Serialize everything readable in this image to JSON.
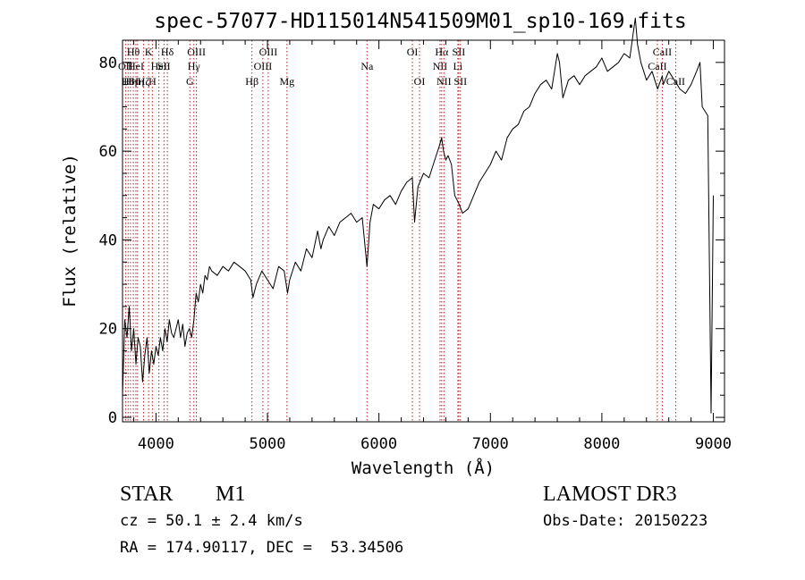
{
  "chart_data": {
    "type": "line",
    "title": "spec-57077-HD115014N541509M01_sp10-169.fits",
    "xlabel": "Wavelength (Å)",
    "ylabel": "Flux (relative)",
    "xlim": [
      3700,
      9100
    ],
    "ylim": [
      -1,
      85
    ],
    "x_ticks": [
      4000,
      5000,
      6000,
      7000,
      8000,
      9000
    ],
    "y_ticks": [
      0,
      20,
      40,
      60,
      80
    ],
    "grid": false,
    "line_color": "#000000",
    "marker_color": "#b22222",
    "series": [
      {
        "x": [
          3700,
          3720,
          3740,
          3760,
          3780,
          3800,
          3820,
          3840,
          3860,
          3880,
          3900,
          3920,
          3940,
          3960,
          3980,
          4000,
          4020,
          4040,
          4060,
          4080,
          4100,
          4120,
          4140,
          4160,
          4180,
          4200,
          4220,
          4240,
          4260,
          4280,
          4300,
          4320,
          4340,
          4360,
          4380,
          4400,
          4420,
          4440,
          4460,
          4480,
          4500,
          4550,
          4600,
          4650,
          4700,
          4750,
          4800,
          4850,
          4870,
          4900,
          4950,
          5000,
          5050,
          5100,
          5150,
          5180,
          5200,
          5250,
          5300,
          5350,
          5400,
          5450,
          5480,
          5500,
          5550,
          5600,
          5650,
          5700,
          5750,
          5800,
          5850,
          5893,
          5920,
          5950,
          6000,
          6050,
          6100,
          6150,
          6200,
          6250,
          6300,
          6320,
          6350,
          6400,
          6450,
          6500,
          6540,
          6563,
          6580,
          6600,
          6620,
          6650,
          6680,
          6700,
          6720,
          6750,
          6800,
          6850,
          6900,
          6950,
          7000,
          7050,
          7100,
          7150,
          7200,
          7250,
          7300,
          7350,
          7400,
          7450,
          7500,
          7550,
          7600,
          7620,
          7650,
          7700,
          7750,
          7800,
          7850,
          7900,
          7950,
          8000,
          8050,
          8100,
          8150,
          8200,
          8250,
          8300,
          8320,
          8350,
          8400,
          8450,
          8500,
          8542,
          8550,
          8600,
          8650,
          8700,
          8750,
          8800,
          8850,
          8880,
          8900,
          8950,
          8980,
          9000
        ],
        "y": [
          5,
          22,
          18,
          25,
          15,
          20,
          12,
          18,
          16,
          8,
          14,
          18,
          10,
          15,
          12,
          16,
          14,
          18,
          15,
          20,
          17,
          22,
          19,
          18,
          20,
          22,
          18,
          21,
          16,
          19,
          20,
          18,
          22,
          28,
          26,
          30,
          28,
          32,
          31,
          34,
          33,
          32,
          34,
          33,
          35,
          34,
          33,
          31,
          27,
          30,
          33,
          31,
          29,
          34,
          33,
          28,
          31,
          35,
          33,
          38,
          36,
          42,
          38,
          40,
          43,
          41,
          44,
          45,
          46,
          44,
          45,
          34,
          44,
          48,
          47,
          49,
          50,
          48,
          51,
          53,
          54,
          44,
          52,
          55,
          54,
          58,
          61,
          63,
          60,
          58,
          59,
          57,
          50,
          49,
          48,
          46,
          47,
          50,
          53,
          55,
          57,
          60,
          58,
          63,
          65,
          66,
          69,
          70,
          73,
          75,
          76,
          74,
          82,
          80,
          72,
          76,
          77,
          75,
          77,
          78,
          79,
          81,
          78,
          79,
          80,
          82,
          81,
          90,
          84,
          80,
          76,
          78,
          74,
          77,
          75,
          78,
          76,
          74,
          73,
          75,
          78,
          80,
          70,
          68,
          1,
          50
        ]
      }
    ],
    "line_markers": [
      {
        "wavelength": 3727,
        "label": "OII",
        "row": 1
      },
      {
        "wavelength": 3750,
        "label": "H8",
        "row": 2
      },
      {
        "wavelength": 3771,
        "label": "Hη",
        "row": 2
      },
      {
        "wavelength": 3797,
        "label": "Hθ",
        "row": 0
      },
      {
        "wavelength": 3820,
        "label": "HeI",
        "row": 1
      },
      {
        "wavelength": 3835,
        "label": "Hη",
        "row": 2
      },
      {
        "wavelength": 3889,
        "label": "Hζ",
        "row": 2
      },
      {
        "wavelength": 3934,
        "label": "K",
        "row": 0
      },
      {
        "wavelength": 3968,
        "label": "H",
        "row": 2
      },
      {
        "wavelength": 4026,
        "label": "HeI",
        "row": 1
      },
      {
        "wavelength": 4072,
        "label": "SII",
        "row": 1
      },
      {
        "wavelength": 4102,
        "label": "Hδ",
        "row": 0
      },
      {
        "wavelength": 4304,
        "label": "G",
        "row": 2
      },
      {
        "wavelength": 4340,
        "label": "Hγ",
        "row": 1
      },
      {
        "wavelength": 4363,
        "label": "OIII",
        "row": 0
      },
      {
        "wavelength": 4861,
        "label": "Hβ",
        "row": 2
      },
      {
        "wavelength": 4959,
        "label": "OIII",
        "row": 1
      },
      {
        "wavelength": 5007,
        "label": "OIII",
        "row": 0
      },
      {
        "wavelength": 5175,
        "label": "Mg",
        "row": 2
      },
      {
        "wavelength": 5893,
        "label": "Na",
        "row": 1
      },
      {
        "wavelength": 6300,
        "label": "OI",
        "row": 0
      },
      {
        "wavelength": 6364,
        "label": "OI",
        "row": 2
      },
      {
        "wavelength": 6548,
        "label": "NII",
        "row": 1
      },
      {
        "wavelength": 6563,
        "label": "Hα",
        "row": 0
      },
      {
        "wavelength": 6583,
        "label": "NII",
        "row": 2
      },
      {
        "wavelength": 6708,
        "label": "Li",
        "row": 1
      },
      {
        "wavelength": 6716,
        "label": "SII",
        "row": 0
      },
      {
        "wavelength": 6731,
        "label": "SII",
        "row": 2
      },
      {
        "wavelength": 8498,
        "label": "CaII",
        "row": 1
      },
      {
        "wavelength": 8542,
        "label": "CaII",
        "row": 0
      },
      {
        "wavelength": 8662,
        "label": "CaII",
        "row": 2
      }
    ]
  },
  "info": {
    "object_class": "STAR",
    "subclass": "M1",
    "survey": "LAMOST DR3",
    "redshift": "cz = 50.1 ± 2.4 km/s",
    "obs_date": "Obs-Date: 20150223",
    "coords": "RA = 174.90117, DEC =  53.34506"
  }
}
